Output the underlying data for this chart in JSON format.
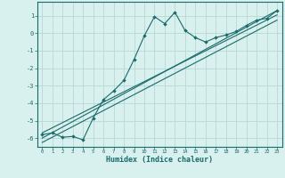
{
  "xlabel": "Humidex (Indice chaleur)",
  "bg_color": "#d8f0ee",
  "grid_color": "#b8d8d4",
  "line_color": "#1a6b6b",
  "xlim": [
    -0.5,
    23.5
  ],
  "ylim": [
    -6.5,
    1.8
  ],
  "yticks": [
    -6,
    -5,
    -4,
    -3,
    -2,
    -1,
    0,
    1
  ],
  "xticks": [
    0,
    1,
    2,
    3,
    4,
    5,
    6,
    7,
    8,
    9,
    10,
    11,
    12,
    13,
    14,
    15,
    16,
    17,
    18,
    19,
    20,
    21,
    22,
    23
  ],
  "connected_x": [
    0,
    1,
    2,
    3,
    4,
    5,
    6,
    7,
    8,
    9,
    10,
    11,
    12,
    13,
    14,
    15,
    16,
    17,
    18,
    19,
    20,
    21,
    22,
    23
  ],
  "connected_y": [
    -5.8,
    -5.7,
    -5.95,
    -5.9,
    -6.1,
    -4.85,
    -3.8,
    -3.3,
    -2.7,
    -1.5,
    -0.15,
    0.95,
    0.55,
    1.2,
    0.15,
    -0.25,
    -0.5,
    -0.25,
    -0.1,
    0.1,
    0.45,
    0.75,
    0.85,
    1.3
  ],
  "line1_y": [
    -6.0,
    1.3
  ],
  "line2_y": [
    -5.7,
    1.05
  ],
  "line3_y": [
    -6.25,
    0.75
  ]
}
